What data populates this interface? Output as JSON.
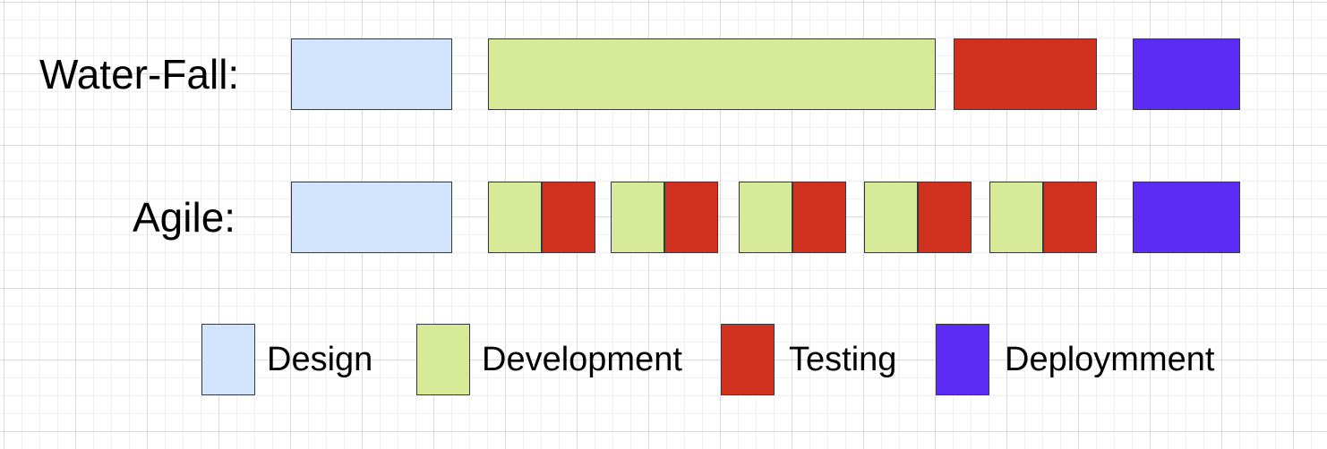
{
  "colors": {
    "design": "#d2e4fb",
    "development": "#d6ea98",
    "testing": "#d13220",
    "deployment": "#5d2cf4"
  },
  "rows": {
    "waterfall": {
      "label": "Water-Fall:"
    },
    "agile": {
      "label": "Agile:"
    }
  },
  "legend": [
    {
      "key": "design",
      "label": "Design"
    },
    {
      "key": "development",
      "label": "Development"
    },
    {
      "key": "testing",
      "label": "Testing"
    },
    {
      "key": "deployment",
      "label": "Deploymment"
    }
  ]
}
